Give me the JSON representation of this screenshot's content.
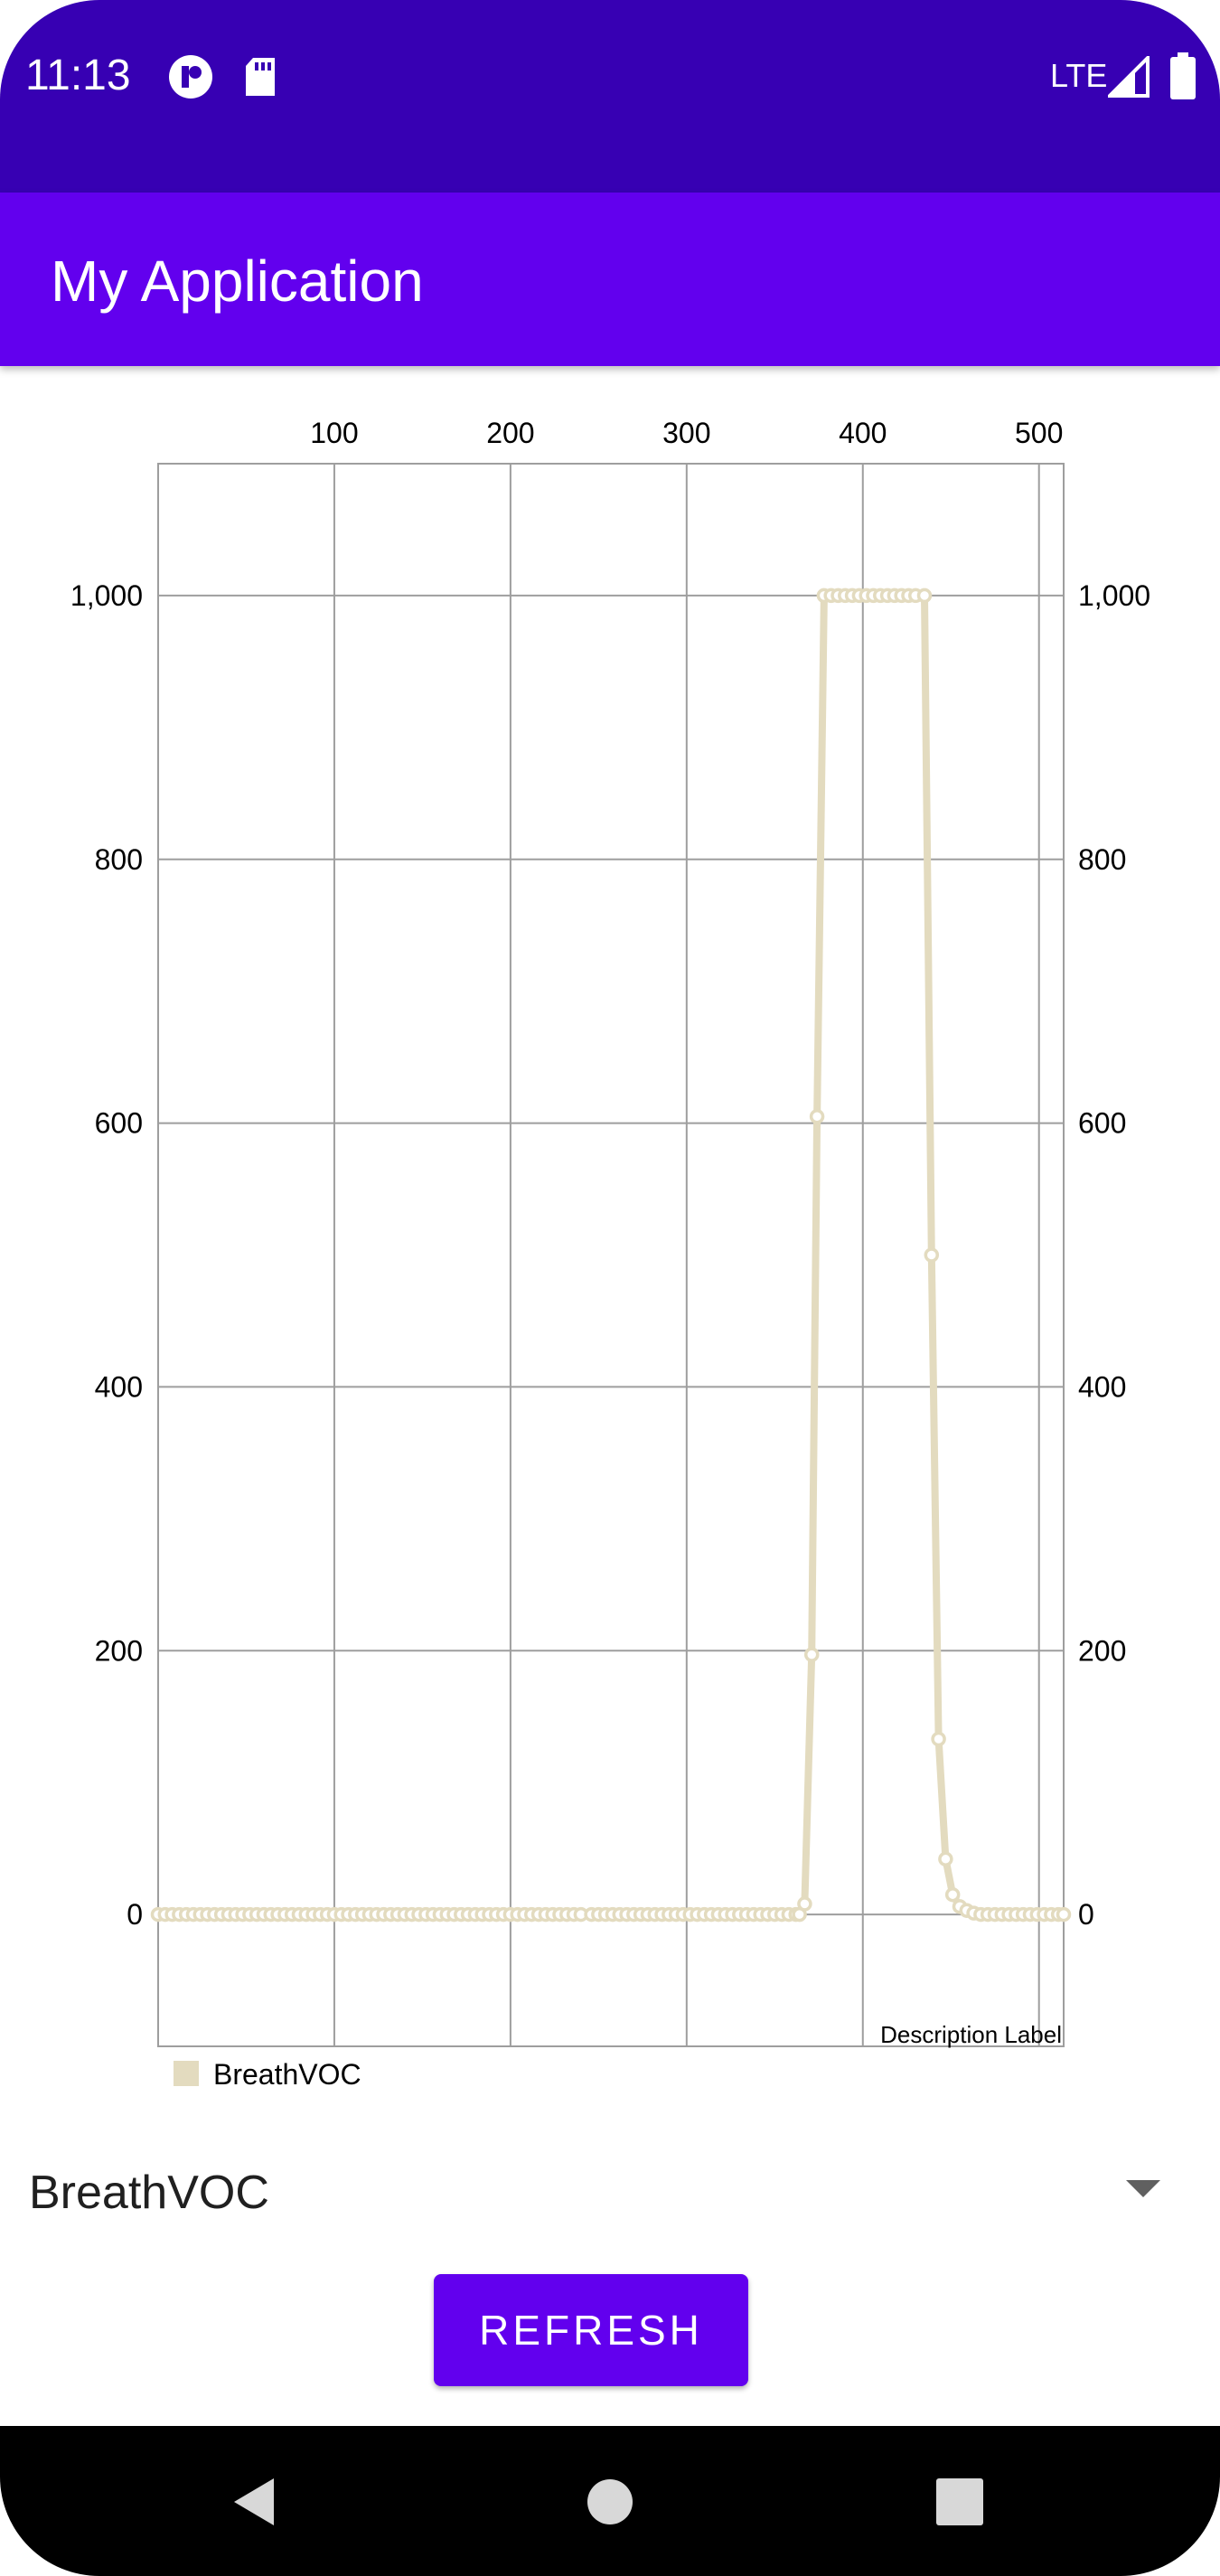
{
  "status_bar": {
    "time": "11:13",
    "network": "LTE",
    "icons": [
      "app-notification-icon",
      "sd-card-icon",
      "signal-icon",
      "battery-icon"
    ],
    "color": "#3700b3"
  },
  "app_bar": {
    "title": "My Application",
    "color": "#6200ee"
  },
  "chart_data": {
    "type": "line",
    "title": "",
    "description": "Description Label",
    "xlabel": "",
    "ylabel": "",
    "xlim": [
      0,
      514
    ],
    "ylim": [
      -100,
      1100
    ],
    "x_ticks": [
      100,
      200,
      300,
      400,
      500
    ],
    "x_tick_labels": [
      "100",
      "200",
      "300",
      "400",
      "500"
    ],
    "y_ticks": [
      0,
      200,
      400,
      600,
      800,
      1000
    ],
    "y_tick_labels": [
      "0",
      "200",
      "400",
      "600",
      "800",
      "1,000"
    ],
    "x_axis_position": "top",
    "y_axis_labels": "both sides",
    "grid": true,
    "legend": {
      "placement": "bottom-left",
      "entries": [
        "BreathVOC"
      ]
    },
    "series": [
      {
        "name": "BreathVOC",
        "color": "#e3dbbf",
        "points": [
          [
            0,
            0
          ],
          [
            4,
            0
          ],
          [
            8,
            0
          ],
          [
            12,
            0
          ],
          [
            16,
            0
          ],
          [
            20,
            0
          ],
          [
            24,
            0
          ],
          [
            28,
            0
          ],
          [
            32,
            0
          ],
          [
            36,
            0
          ],
          [
            40,
            0
          ],
          [
            44,
            0
          ],
          [
            48,
            0
          ],
          [
            52,
            0
          ],
          [
            56,
            0
          ],
          [
            60,
            0
          ],
          [
            64,
            0
          ],
          [
            68,
            0
          ],
          [
            72,
            0
          ],
          [
            76,
            0
          ],
          [
            80,
            0
          ],
          [
            84,
            0
          ],
          [
            88,
            0
          ],
          [
            92,
            0
          ],
          [
            96,
            0
          ],
          [
            100,
            0
          ],
          [
            104,
            0
          ],
          [
            108,
            0
          ],
          [
            112,
            0
          ],
          [
            116,
            0
          ],
          [
            120,
            0
          ],
          [
            124,
            0
          ],
          [
            128,
            0
          ],
          [
            132,
            0
          ],
          [
            136,
            0
          ],
          [
            140,
            0
          ],
          [
            144,
            0
          ],
          [
            148,
            0
          ],
          [
            152,
            0
          ],
          [
            156,
            0
          ],
          [
            160,
            0
          ],
          [
            164,
            0
          ],
          [
            168,
            0
          ],
          [
            172,
            0
          ],
          [
            176,
            0
          ],
          [
            180,
            0
          ],
          [
            184,
            0
          ],
          [
            188,
            0
          ],
          [
            192,
            0
          ],
          [
            196,
            0
          ],
          [
            200,
            0
          ],
          [
            204,
            0
          ],
          [
            208,
            0
          ],
          [
            212,
            0
          ],
          [
            216,
            0
          ],
          [
            220,
            0
          ],
          [
            224,
            0
          ],
          [
            228,
            0
          ],
          [
            232,
            0
          ],
          [
            236,
            0
          ],
          [
            240,
            0
          ],
          [
            246,
            0
          ],
          [
            250,
            0
          ],
          [
            254,
            0
          ],
          [
            258,
            0
          ],
          [
            262,
            0
          ],
          [
            266,
            0
          ],
          [
            270,
            0
          ],
          [
            274,
            0
          ],
          [
            278,
            0
          ],
          [
            282,
            0
          ],
          [
            286,
            0
          ],
          [
            290,
            0
          ],
          [
            294,
            0
          ],
          [
            298,
            0
          ],
          [
            302,
            0
          ],
          [
            306,
            0
          ],
          [
            310,
            0
          ],
          [
            314,
            0
          ],
          [
            318,
            0
          ],
          [
            322,
            0
          ],
          [
            326,
            0
          ],
          [
            330,
            0
          ],
          [
            334,
            0
          ],
          [
            338,
            0
          ],
          [
            342,
            0
          ],
          [
            346,
            0
          ],
          [
            350,
            0
          ],
          [
            354,
            0
          ],
          [
            358,
            0
          ],
          [
            362,
            0
          ],
          [
            364,
            0
          ],
          [
            367,
            8
          ],
          [
            371,
            197
          ],
          [
            374,
            605
          ],
          [
            378,
            1000
          ],
          [
            382,
            1000
          ],
          [
            386,
            1000
          ],
          [
            390,
            1000
          ],
          [
            394,
            1000
          ],
          [
            398,
            1000
          ],
          [
            402,
            1000
          ],
          [
            406,
            1000
          ],
          [
            410,
            1000
          ],
          [
            414,
            1000
          ],
          [
            418,
            1000
          ],
          [
            422,
            1000
          ],
          [
            426,
            1000
          ],
          [
            430,
            1000
          ],
          [
            435,
            1000
          ],
          [
            439,
            500
          ],
          [
            443,
            133
          ],
          [
            447,
            42
          ],
          [
            451,
            15
          ],
          [
            455,
            6
          ],
          [
            459,
            3
          ],
          [
            463,
            1
          ],
          [
            467,
            0
          ],
          [
            471,
            0
          ],
          [
            475,
            0
          ],
          [
            479,
            0
          ],
          [
            483,
            0
          ],
          [
            487,
            0
          ],
          [
            491,
            0
          ],
          [
            495,
            0
          ],
          [
            499,
            0
          ],
          [
            503,
            0
          ],
          [
            507,
            0
          ],
          [
            511,
            0
          ],
          [
            514,
            0
          ]
        ]
      }
    ]
  },
  "spinner": {
    "selected": "BreathVOC"
  },
  "refresh_button": {
    "label": "REFRESH"
  },
  "nav_bar": {
    "buttons": [
      "back-icon",
      "home-icon",
      "recents-icon"
    ]
  }
}
